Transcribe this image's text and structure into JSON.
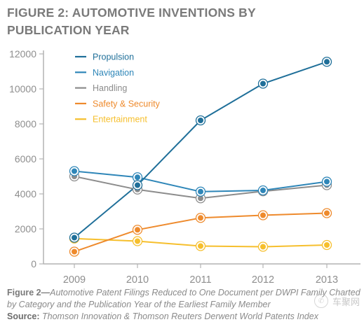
{
  "figure": {
    "title_line1": "FIGURE 2:  AUTOMOTIVE INVENTIONS BY",
    "title_line2": "PUBLICATION YEAR",
    "caption_lead": "Figure 2—",
    "caption_text": "Automotive Patent Filings Reduced to One Document per DWPI Family Charted by Category and the Publication Year of the Earliest Family Member",
    "source_label": "Source:",
    "source_text": " Thomson Innovation & Thomson Reuters Derwent World Patents Index",
    "watermark_text": "车聚网",
    "watermark_icon": "wechat-icon"
  },
  "chart_data": {
    "type": "line",
    "categories": [
      "2009",
      "2010",
      "2011",
      "2012",
      "2013"
    ],
    "ylim": [
      0,
      12000
    ],
    "yticks": [
      0,
      2000,
      4000,
      6000,
      8000,
      10000,
      12000
    ],
    "grid": false,
    "legend_position": "top-left",
    "series": [
      {
        "name": "Propulsion",
        "color": "#1f6f99",
        "values": [
          1500,
          4500,
          8200,
          10300,
          11550
        ]
      },
      {
        "name": "Navigation",
        "color": "#2e86b8",
        "values": [
          5300,
          4950,
          4130,
          4200,
          4700
        ]
      },
      {
        "name": "Handling",
        "color": "#8c8c8c",
        "values": [
          5000,
          4250,
          3750,
          4150,
          4500
        ]
      },
      {
        "name": "Safety & Security",
        "color": "#ee8a2c",
        "values": [
          700,
          1950,
          2630,
          2780,
          2900
        ]
      },
      {
        "name": "Entertainment",
        "color": "#f6bf2d",
        "values": [
          1450,
          1300,
          1020,
          980,
          1080
        ]
      }
    ]
  }
}
